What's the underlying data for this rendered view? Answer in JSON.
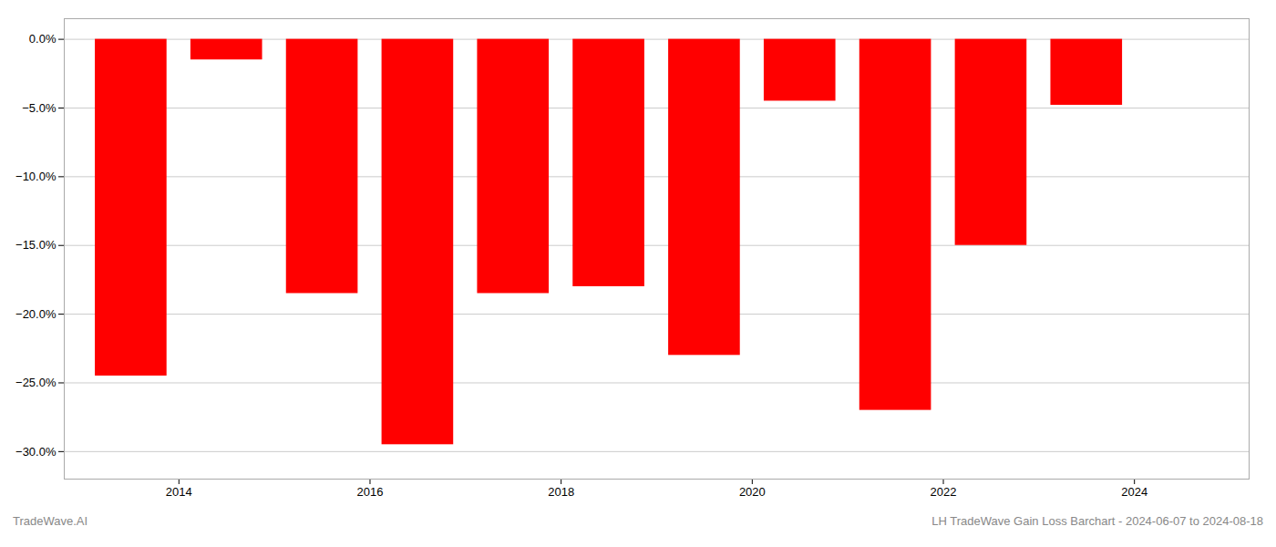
{
  "chart_data": {
    "type": "bar",
    "x": [
      2013.5,
      2014.5,
      2015.5,
      2016.5,
      2017.5,
      2018.5,
      2019.5,
      2020.5,
      2021.5,
      2022.5,
      2023.5
    ],
    "values": [
      -24.5,
      -1.5,
      -18.5,
      -29.5,
      -18.5,
      -18.0,
      -23.0,
      -4.5,
      -27.0,
      -15.0,
      -4.8
    ],
    "color": "#ff0000",
    "xlim": [
      2012.8,
      2025.2
    ],
    "xticks": [
      2014,
      2016,
      2018,
      2020,
      2022,
      2024
    ],
    "ylim": [
      -32,
      1.5
    ],
    "yticks": [
      {
        "value": 0.0,
        "label": "0.0%"
      },
      {
        "value": -5.0,
        "label": "−5.0%"
      },
      {
        "value": -10.0,
        "label": "−10.0%"
      },
      {
        "value": -15.0,
        "label": "−15.0%"
      },
      {
        "value": -20.0,
        "label": "−20.0%"
      },
      {
        "value": -25.0,
        "label": "−25.0%"
      },
      {
        "value": -30.0,
        "label": "−30.0%"
      }
    ],
    "grid": true,
    "annotations": [
      "TradeWave.AI",
      "LH TradeWave Gain Loss Barchart - 2024-06-07 to 2024-08-18"
    ]
  }
}
